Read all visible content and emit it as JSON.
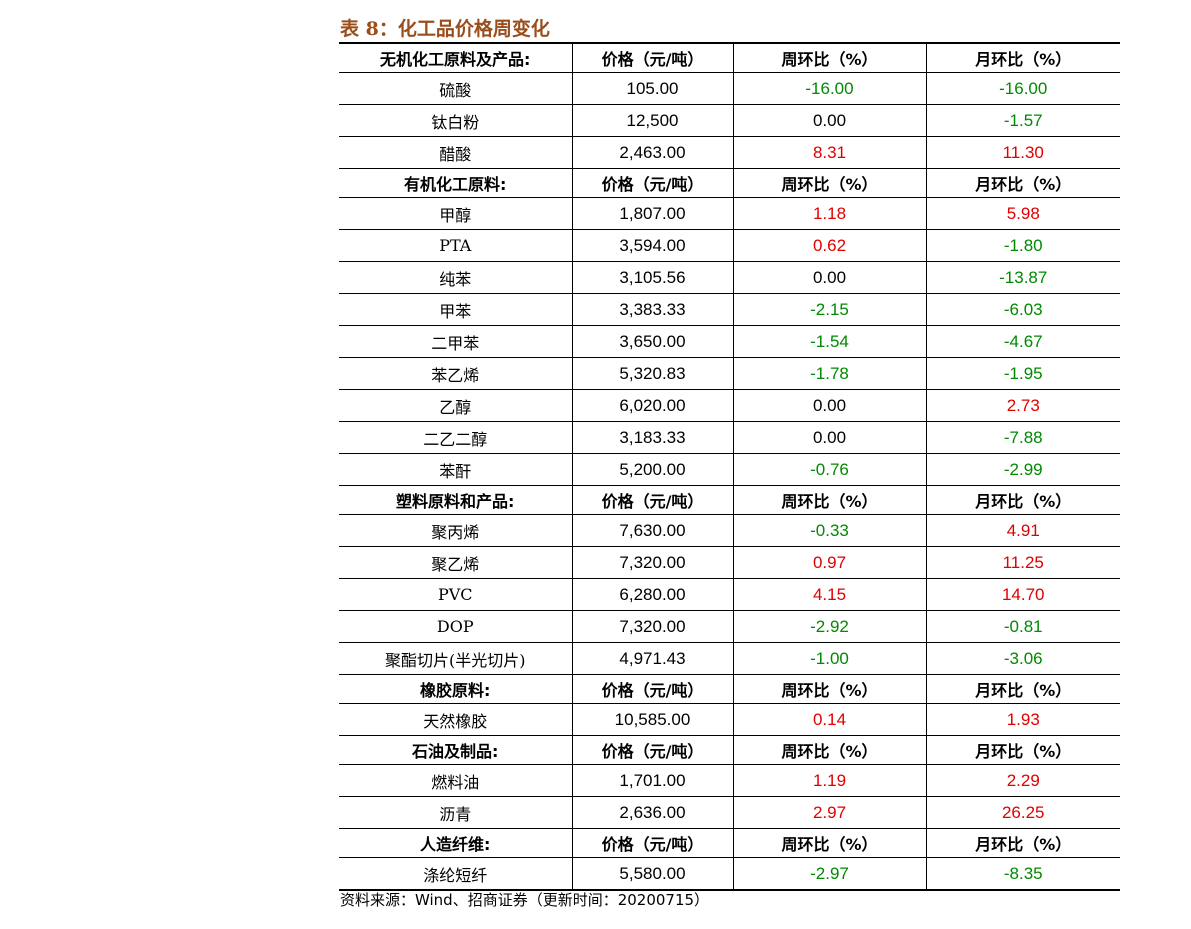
{
  "title": "表 8：化工品价格周变化",
  "source": "资料来源：Wind、招商证券（更新时间：20200715）",
  "colors": {
    "up": "#e00000",
    "down": "#008a00",
    "title": "#9a4e1c"
  },
  "sections": [
    {
      "header": [
        "无机化工原料及产品:",
        "价格（元/吨）",
        "周环比（%）",
        "月环比（%）"
      ],
      "rows": [
        [
          "硫酸",
          "105.00",
          "-16.00",
          "-16.00"
        ],
        [
          "钛白粉",
          "12,500",
          "0.00",
          "-1.57"
        ],
        [
          "醋酸",
          "2,463.00",
          "8.31",
          "11.30"
        ]
      ]
    },
    {
      "header": [
        "有机化工原料:",
        "价格（元/吨）",
        "周环比（%）",
        "月环比（%）"
      ],
      "rows": [
        [
          "甲醇",
          "1,807.00",
          "1.18",
          "5.98"
        ],
        [
          "PTA",
          "3,594.00",
          "0.62",
          "-1.80"
        ],
        [
          "纯苯",
          "3,105.56",
          "0.00",
          "-13.87"
        ],
        [
          "甲苯",
          "3,383.33",
          "-2.15",
          "-6.03"
        ],
        [
          "二甲苯",
          "3,650.00",
          "-1.54",
          "-4.67"
        ],
        [
          "苯乙烯",
          "5,320.83",
          "-1.78",
          "-1.95"
        ],
        [
          "乙醇",
          "6,020.00",
          "0.00",
          "2.73"
        ],
        [
          "二乙二醇",
          "3,183.33",
          "0.00",
          "-7.88"
        ],
        [
          "苯酐",
          "5,200.00",
          "-0.76",
          "-2.99"
        ]
      ]
    },
    {
      "header": [
        "塑料原料和产品:",
        "价格（元/吨）",
        "周环比（%）",
        "月环比（%）"
      ],
      "rows": [
        [
          "聚丙烯",
          "7,630.00",
          "-0.33",
          "4.91"
        ],
        [
          "聚乙烯",
          "7,320.00",
          "0.97",
          "11.25"
        ],
        [
          "PVC",
          "6,280.00",
          "4.15",
          "14.70"
        ],
        [
          "DOP",
          "7,320.00",
          "-2.92",
          "-0.81"
        ],
        [
          "聚酯切片(半光切片)",
          "4,971.43",
          "-1.00",
          "-3.06"
        ]
      ]
    },
    {
      "header": [
        "橡胶原料:",
        "价格（元/吨）",
        "周环比（%）",
        "月环比（%）"
      ],
      "rows": [
        [
          "天然橡胶",
          "10,585.00",
          "0.14",
          "1.93"
        ]
      ]
    },
    {
      "header": [
        "石油及制品:",
        "价格（元/吨）",
        "周环比（%）",
        "月环比（%）"
      ],
      "rows": [
        [
          "燃料油",
          "1,701.00",
          "1.19",
          "2.29"
        ],
        [
          "沥青",
          "2,636.00",
          "2.97",
          "26.25"
        ]
      ]
    },
    {
      "header": [
        "人造纤维:",
        "价格（元/吨）",
        "周环比（%）",
        "月环比（%）"
      ],
      "rows": [
        [
          "涤纶短纤",
          "5,580.00",
          "-2.97",
          "-8.35"
        ]
      ]
    }
  ]
}
